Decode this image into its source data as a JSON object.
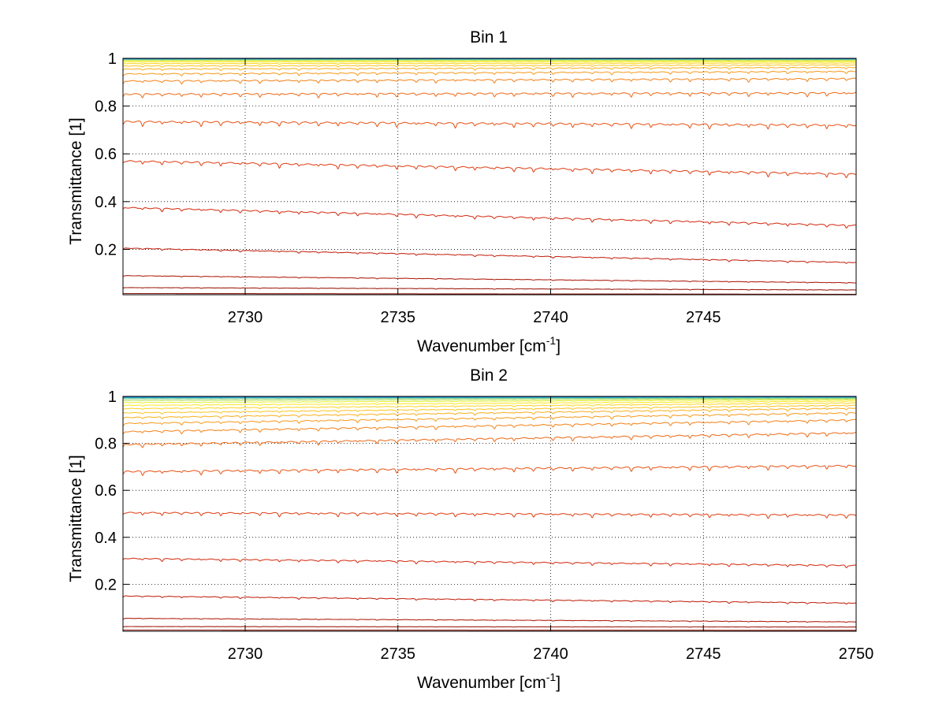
{
  "chart_data": [
    {
      "type": "line",
      "title": "Bin 1",
      "xlabel": "Wavenumber [cm",
      "xlabel_sup": "-1",
      "xlabel_end": "]",
      "ylabel": "Transmittance [1]",
      "xlim": [
        2726,
        2750
      ],
      "ylim": [
        0.01,
        1.0
      ],
      "xticks": [
        2730,
        2735,
        2740,
        2745
      ],
      "yticks": [
        0.2,
        0.4,
        0.6,
        0.8,
        1
      ],
      "ytick_labels": [
        "0.2",
        "0.4",
        "0.6",
        "0.8",
        "1"
      ],
      "grid": true,
      "absorption_line_spacing_cm1": 0.64,
      "series": [
        {
          "color": "#8b1a10",
          "start": 0.015,
          "end": 0.012,
          "depth": 0.0
        },
        {
          "color": "#9e1e12",
          "start": 0.04,
          "end": 0.03,
          "depth": 0.002
        },
        {
          "color": "#b02416",
          "start": 0.09,
          "end": 0.06,
          "depth": 0.003
        },
        {
          "color": "#c52c1a",
          "start": 0.205,
          "end": 0.145,
          "depth": 0.006
        },
        {
          "color": "#d6381e",
          "start": 0.375,
          "end": 0.3,
          "depth": 0.012
        },
        {
          "color": "#e04a22",
          "start": 0.57,
          "end": 0.515,
          "depth": 0.016
        },
        {
          "color": "#e85e24",
          "start": 0.735,
          "end": 0.72,
          "depth": 0.018
        },
        {
          "color": "#ee7426",
          "start": 0.85,
          "end": 0.855,
          "depth": 0.015
        },
        {
          "color": "#f38a28",
          "start": 0.905,
          "end": 0.915,
          "depth": 0.012
        },
        {
          "color": "#f7a02a",
          "start": 0.935,
          "end": 0.945,
          "depth": 0.009
        },
        {
          "color": "#f9b42c",
          "start": 0.955,
          "end": 0.962,
          "depth": 0.007
        },
        {
          "color": "#fbc82e",
          "start": 0.968,
          "end": 0.972,
          "depth": 0.005
        },
        {
          "color": "#fdd830",
          "start": 0.978,
          "end": 0.98,
          "depth": 0.004
        },
        {
          "color": "#fce832",
          "start": 0.985,
          "end": 0.986,
          "depth": 0.003
        },
        {
          "color": "#e6f040",
          "start": 0.99,
          "end": 0.99,
          "depth": 0.002
        },
        {
          "color": "#b4e060",
          "start": 0.993,
          "end": 0.993,
          "depth": 0.001
        },
        {
          "color": "#80d090",
          "start": 0.995,
          "end": 0.995,
          "depth": 0.001
        },
        {
          "color": "#40b8c0",
          "start": 0.997,
          "end": 0.997,
          "depth": 0.0
        },
        {
          "color": "#1a90d0",
          "start": 0.998,
          "end": 0.998,
          "depth": 0.0
        },
        {
          "color": "#1060c0",
          "start": 0.999,
          "end": 0.999,
          "depth": 0.0
        }
      ]
    },
    {
      "type": "line",
      "title": "Bin 2",
      "xlabel": "Wavenumber [cm",
      "xlabel_sup": "-1",
      "xlabel_end": "]",
      "ylabel": "Transmittance [1]",
      "xlim": [
        2726,
        2750
      ],
      "ylim": [
        0.0,
        1.0
      ],
      "xticks": [
        2730,
        2735,
        2740,
        2745,
        2750
      ],
      "yticks": [
        0.2,
        0.4,
        0.6,
        0.8,
        1
      ],
      "ytick_labels": [
        "0.2",
        "0.4",
        "0.6",
        "0.8",
        "1"
      ],
      "grid": true,
      "absorption_line_spacing_cm1": 0.64,
      "series": [
        {
          "color": "#8b1a10",
          "start": 0.005,
          "end": 0.004,
          "depth": 0.0
        },
        {
          "color": "#9e1e12",
          "start": 0.02,
          "end": 0.018,
          "depth": 0.001
        },
        {
          "color": "#b02416",
          "start": 0.055,
          "end": 0.04,
          "depth": 0.003
        },
        {
          "color": "#c52c1a",
          "start": 0.15,
          "end": 0.12,
          "depth": 0.006
        },
        {
          "color": "#d6381e",
          "start": 0.31,
          "end": 0.28,
          "depth": 0.01
        },
        {
          "color": "#e04a22",
          "start": 0.505,
          "end": 0.495,
          "depth": 0.014
        },
        {
          "color": "#e85e24",
          "start": 0.68,
          "end": 0.705,
          "depth": 0.016
        },
        {
          "color": "#ee7426",
          "start": 0.795,
          "end": 0.845,
          "depth": 0.014
        },
        {
          "color": "#f38a28",
          "start": 0.85,
          "end": 0.9,
          "depth": 0.012
        },
        {
          "color": "#f7a02a",
          "start": 0.885,
          "end": 0.93,
          "depth": 0.01
        },
        {
          "color": "#f9b42c",
          "start": 0.91,
          "end": 0.95,
          "depth": 0.008
        },
        {
          "color": "#fbc82e",
          "start": 0.93,
          "end": 0.962,
          "depth": 0.006
        },
        {
          "color": "#fdd830",
          "start": 0.948,
          "end": 0.972,
          "depth": 0.005
        },
        {
          "color": "#fce832",
          "start": 0.962,
          "end": 0.98,
          "depth": 0.004
        },
        {
          "color": "#e6f040",
          "start": 0.974,
          "end": 0.986,
          "depth": 0.003
        },
        {
          "color": "#b4e060",
          "start": 0.983,
          "end": 0.99,
          "depth": 0.002
        },
        {
          "color": "#80d090",
          "start": 0.99,
          "end": 0.993,
          "depth": 0.001
        },
        {
          "color": "#40b8c0",
          "start": 0.994,
          "end": 0.996,
          "depth": 0.001
        },
        {
          "color": "#1a90d0",
          "start": 0.997,
          "end": 0.998,
          "depth": 0.0
        },
        {
          "color": "#1060c0",
          "start": 0.999,
          "end": 0.999,
          "depth": 0.0
        }
      ]
    }
  ]
}
